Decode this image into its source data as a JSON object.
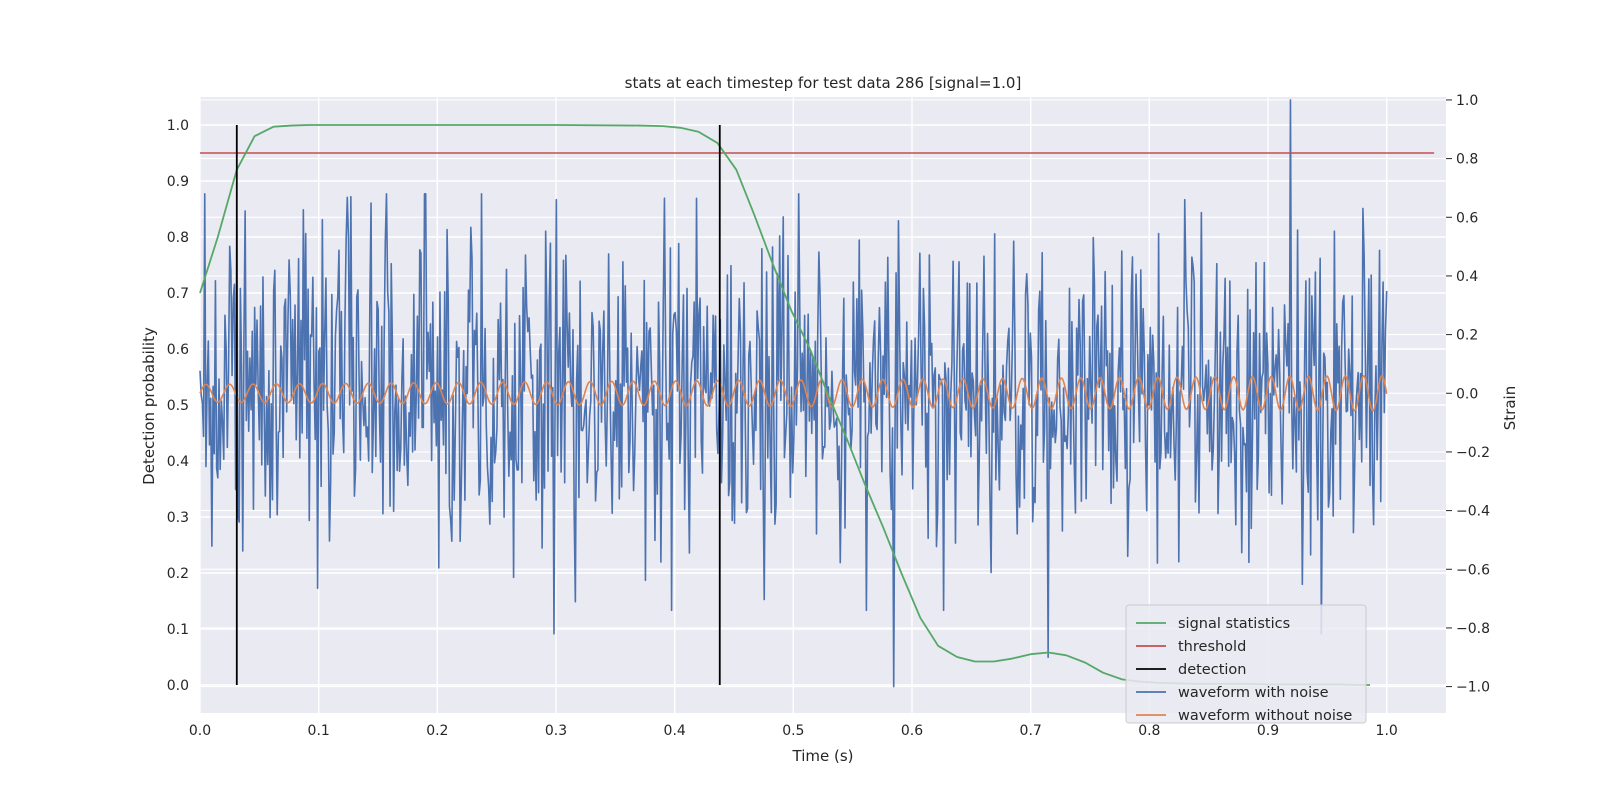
{
  "chart_data": {
    "type": "line",
    "title": "stats at each timestep for test data 286 [signal=1.0]",
    "xlabel": "Time (s)",
    "ylabel_left": "Detection probability",
    "ylabel_right": "Strain",
    "xlim": [
      0.0,
      1.05
    ],
    "ylim_left": [
      -0.05,
      1.05
    ],
    "ylim_right": [
      -1.09,
      1.01
    ],
    "x_ticks": [
      0.0,
      0.1,
      0.2,
      0.3,
      0.4,
      0.5,
      0.6,
      0.7,
      0.8,
      0.9,
      1.0
    ],
    "x_tick_labels": [
      "0.0",
      "0.1",
      "0.2",
      "0.3",
      "0.4",
      "0.5",
      "0.6",
      "0.7",
      "0.8",
      "0.9",
      "1.0"
    ],
    "y_left_ticks": [
      0.0,
      0.1,
      0.2,
      0.3,
      0.4,
      0.5,
      0.6,
      0.7,
      0.8,
      0.9,
      1.0
    ],
    "y_left_tick_labels": [
      "0.0",
      "0.1",
      "0.2",
      "0.3",
      "0.4",
      "0.5",
      "0.6",
      "0.7",
      "0.8",
      "0.9",
      "1.0"
    ],
    "y_right_ticks": [
      -1.0,
      -0.8,
      -0.6,
      -0.4,
      -0.2,
      0.0,
      0.2,
      0.4,
      0.6,
      0.8,
      1.0
    ],
    "y_right_tick_labels": [
      "−1.0",
      "−0.8",
      "−0.6",
      "−0.4",
      "−0.2",
      "0.0",
      "0.2",
      "0.4",
      "0.6",
      "0.8",
      "1.0"
    ],
    "grid": true,
    "legend_position": "lower-right",
    "legend": [
      {
        "label": "signal statistics",
        "color": "#55a868"
      },
      {
        "label": "threshold",
        "color": "#c44e52"
      },
      {
        "label": "detection",
        "color": "#000000"
      },
      {
        "label": "waveform with noise",
        "color": "#4c72b0"
      },
      {
        "label": "waveform without noise",
        "color": "#dd8452"
      }
    ],
    "series": [
      {
        "name": "signal statistics",
        "axis": "left",
        "color": "#55a868",
        "x": [
          0.0,
          0.015,
          0.031,
          0.046,
          0.062,
          0.077,
          0.092,
          0.2,
          0.3,
          0.37,
          0.39,
          0.405,
          0.42,
          0.436,
          0.452,
          0.467,
          0.483,
          0.498,
          0.514,
          0.529,
          0.545,
          0.56,
          0.576,
          0.591,
          0.607,
          0.622,
          0.638,
          0.653,
          0.669,
          0.684,
          0.7,
          0.715,
          0.73,
          0.746,
          0.761,
          0.777,
          0.792,
          0.808,
          0.823,
          0.839,
          0.854,
          0.87,
          0.885,
          0.9,
          0.916,
          0.931,
          0.947,
          0.962,
          0.978,
          0.986
        ],
        "y": [
          0.7,
          0.8,
          0.92,
          0.98,
          0.997,
          0.999,
          1.0,
          1.0,
          1.0,
          0.999,
          0.998,
          0.995,
          0.988,
          0.968,
          0.92,
          0.84,
          0.75,
          0.67,
          0.6,
          0.52,
          0.44,
          0.36,
          0.28,
          0.2,
          0.12,
          0.07,
          0.05,
          0.042,
          0.042,
          0.047,
          0.055,
          0.058,
          0.053,
          0.04,
          0.022,
          0.01,
          0.006,
          0.004,
          0.003,
          0.002,
          0.002,
          0.002,
          0.002,
          0.001,
          0.001,
          0.001,
          0.001,
          0.001,
          0.0,
          0.0
        ]
      },
      {
        "name": "threshold",
        "axis": "left",
        "color": "#c44e52",
        "x": [
          0.0,
          1.04
        ],
        "y": [
          0.95,
          0.95
        ]
      },
      {
        "name": "detection",
        "axis": "left",
        "color": "#000000",
        "x": [
          0.031,
          0.031,
          null,
          0.438,
          0.438
        ],
        "y": [
          0.0,
          1.0,
          null,
          0.0,
          1.0
        ]
      },
      {
        "name": "waveform with noise",
        "axis": "right",
        "color": "#4c72b0",
        "x_start": 0.0,
        "x_end": 1.0,
        "count": 1000,
        "std": 0.28,
        "seed": 286,
        "peaks": [
          {
            "x": 0.919,
            "y": 1.0
          },
          {
            "x": 0.585,
            "y": -1.0
          },
          {
            "x": 0.945,
            "y": -0.82
          },
          {
            "x": 0.715,
            "y": -0.9
          },
          {
            "x": 0.298,
            "y": -0.82
          },
          {
            "x": 0.127,
            "y": 0.67
          },
          {
            "x": 0.3,
            "y": 0.66
          },
          {
            "x": 0.83,
            "y": 0.66
          },
          {
            "x": 0.98,
            "y": 0.63
          }
        ]
      },
      {
        "name": "waveform without noise",
        "axis": "right",
        "color": "#dd8452",
        "x_start": 0.0,
        "x_end": 1.0,
        "amplitude_start": 0.03,
        "amplitude_end": 0.06,
        "cycles_start": 50,
        "cycles_end": 65
      }
    ]
  }
}
